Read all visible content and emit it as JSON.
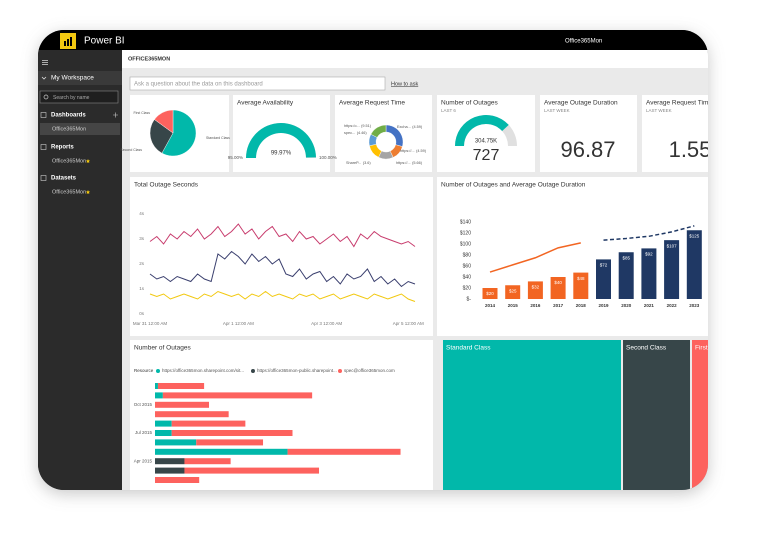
{
  "app": {
    "name": "Power BI",
    "user": "Office365Mon"
  },
  "sidebar": {
    "workspace": "My Workspace",
    "search_placeholder": "Search by name",
    "sections": [
      {
        "title": "Dashboards",
        "items": [
          "Office365Mon"
        ]
      },
      {
        "title": "Reports",
        "items": [
          "Office365Mon"
        ]
      },
      {
        "title": "Datasets",
        "items": [
          "Office365Mon"
        ]
      }
    ]
  },
  "dashboard": {
    "title": "OFFICE365MON",
    "qa_placeholder": "Ask a question about the data on this dashboard",
    "qa_help": "How to ask"
  },
  "cards": [
    {
      "title": "Average Outage Duration",
      "subtitle": "LAST WEEK",
      "value": 96.87
    },
    {
      "title": "Average Request Time",
      "subtitle": "LAST WEEK",
      "value": 1.55
    }
  ],
  "chart_data": [
    {
      "type": "pie",
      "categories": [
        "Standard Class",
        "Second Class",
        "First Class"
      ],
      "values": [
        58,
        27,
        15
      ],
      "colors": [
        "#01b8aa",
        "#374649",
        "#fd625e"
      ]
    },
    {
      "type": "gauge",
      "title": "Average Availability",
      "values": [
        99.97
      ],
      "value_labels": [
        "99.97%"
      ],
      "ylim": [
        95,
        100
      ],
      "yticks": [
        {
          "value": 95,
          "label": "95.00%"
        },
        {
          "value": 100,
          "label": "100.00%"
        }
      ],
      "color": "#01b8aa"
    },
    {
      "type": "donut",
      "title": "Average Request Time",
      "categories": [
        "https:/o...",
        "spec...",
        "Excha...",
        "https://...",
        "ShareP...",
        "https://..."
      ],
      "values": [
        9.51,
        4.46,
        4.59,
        4.59,
        3.6,
        5.66
      ],
      "value_labels": [
        "(9.51)",
        "(4.46)",
        "(4.59)",
        "(4.59)",
        "(3.6)",
        "(5.66)"
      ],
      "colors": [
        "#4472c4",
        "#ed7d31",
        "#a5a5a5",
        "#ffc000",
        "#5b9bd5",
        "#70ad47"
      ]
    },
    {
      "type": "gauge",
      "title": "Number of Outages",
      "subtitle": "LAST 6",
      "values": [
        304750
      ],
      "value_labels": [
        "304.75K"
      ],
      "ylim": [
        0,
        400000
      ],
      "color": "#01b8aa",
      "total": 727
    },
    {
      "type": "line",
      "title": "Total Outage Seconds",
      "categories": [
        "Mar 31 12:00 AM",
        null,
        null,
        null,
        null,
        null,
        null,
        null,
        null,
        null,
        null,
        null,
        null,
        "Apr 1 12:00 AM",
        null,
        null,
        null,
        null,
        null,
        null,
        null,
        null,
        null,
        null,
        null,
        null,
        "Apr 3 12:00 AM",
        null,
        null,
        null,
        null,
        null,
        null,
        null,
        null,
        null,
        null,
        null,
        "Apr 5 12:00 AM",
        null
      ],
      "ylim": [
        0,
        4
      ],
      "yticks": [
        {
          "value": 0,
          "label": "0s"
        },
        {
          "value": 1,
          "label": "1s"
        },
        {
          "value": 2,
          "label": "2s"
        },
        {
          "value": 3,
          "label": "3s"
        },
        {
          "value": 4,
          "label": "4s"
        }
      ],
      "series": [
        {
          "color": "#c83d6e",
          "values": [
            2.9,
            3.1,
            2.8,
            3.2,
            3.0,
            3.3,
            3.1,
            3.4,
            3.0,
            3.2,
            3.5,
            3.1,
            3.3,
            3.6,
            3.2,
            3.4,
            3.0,
            3.3,
            3.5,
            3.1,
            3.2,
            2.9,
            3.3,
            3.0,
            3.1,
            2.8,
            3.0,
            3.2,
            2.9,
            3.1,
            2.7,
            3.2,
            3.0,
            3.3,
            3.1,
            3.0,
            2.9,
            2.8,
            2.9,
            2.7
          ]
        },
        {
          "color": "#3a3f6e",
          "values": [
            1.6,
            1.4,
            1.5,
            1.3,
            1.5,
            1.4,
            1.3,
            1.6,
            1.4,
            1.3,
            2.4,
            2.2,
            2.5,
            2.3,
            2.0,
            2.4,
            2.1,
            2.3,
            2.0,
            2.2,
            1.6,
            1.5,
            1.8,
            1.4,
            1.6,
            1.7,
            1.3,
            1.5,
            1.2,
            1.6,
            1.4,
            1.5,
            1.8,
            1.3,
            1.5,
            1.2,
            1.4,
            1.1,
            1.3,
            1.2
          ]
        },
        {
          "color": "#f2c80f",
          "values": [
            0.8,
            0.7,
            0.8,
            0.6,
            0.7,
            0.8,
            0.7,
            0.6,
            0.8,
            0.7,
            0.9,
            0.8,
            0.7,
            0.8,
            0.6,
            0.8,
            0.7,
            0.9,
            0.7,
            0.8,
            0.7,
            0.6,
            0.8,
            0.7,
            0.8,
            0.6,
            0.7,
            0.8,
            0.6,
            0.7,
            0.8,
            0.7,
            0.6,
            0.8,
            0.7,
            0.6,
            0.7,
            0.8,
            0.6,
            0.5
          ]
        }
      ]
    },
    {
      "type": "combo",
      "title": "Number of Outages and Average Outage Duration",
      "categories": [
        "2014",
        "2015",
        "2016",
        "2017",
        "2018",
        "2019",
        "2020",
        "2021",
        "2022",
        "2023"
      ],
      "ylim": [
        0,
        140
      ],
      "yticks": [
        {
          "value": 0,
          "label": "$-"
        },
        {
          "value": 20,
          "label": "$20"
        },
        {
          "value": 40,
          "label": "$40"
        },
        {
          "value": 60,
          "label": "$60"
        },
        {
          "value": 80,
          "label": "$80"
        },
        {
          "value": 100,
          "label": "$100"
        },
        {
          "value": 120,
          "label": "$120"
        },
        {
          "value": 140,
          "label": "$140"
        }
      ],
      "series": [
        {
          "type": "bar",
          "values": [
            20,
            25,
            32,
            40,
            48,
            72,
            85,
            92,
            107,
            125
          ],
          "value_labels": [
            "$20",
            "$25",
            "$32",
            "$40",
            "$48",
            "$72",
            "$85",
            "$92",
            "$107",
            "$125"
          ],
          "colors": [
            "#f26522",
            "#f26522",
            "#f26522",
            "#f26522",
            "#f26522",
            "#1f3864",
            "#1f3864",
            "#1f3864",
            "#1f3864",
            "#1f3864"
          ]
        },
        {
          "type": "line",
          "color": "#f26522",
          "values": [
            49,
            62,
            75,
            93,
            102,
            null,
            null,
            null,
            null,
            null
          ]
        },
        {
          "type": "line",
          "color": "#1f3864",
          "dashed": true,
          "values": [
            null,
            null,
            null,
            null,
            null,
            107,
            110,
            114,
            122,
            133
          ]
        }
      ]
    },
    {
      "type": "hbar",
      "title": "Number of Outages",
      "legend_title": "Resource",
      "categories": [
        null,
        null,
        "Oct 2015",
        null,
        null,
        "Jul 2015",
        null,
        null,
        "Apr 2015",
        null,
        null
      ],
      "xlim": [
        0,
        280
      ],
      "series": [
        {
          "name": "https://office365mon.sharepoint.com/sit...",
          "color": "#01b8aa",
          "values": [
            3,
            8,
            0,
            0,
            17,
            17,
            42,
            135,
            0,
            0,
            0
          ]
        },
        {
          "name": "https://office365mon-public.sharepoint...",
          "color": "#374649",
          "values": [
            0,
            0,
            0,
            0,
            0,
            0,
            0,
            0,
            30,
            30,
            0
          ]
        },
        {
          "name": "spec@office365mon.com",
          "color": "#fd625e",
          "values": [
            47,
            152,
            55,
            75,
            75,
            123,
            68,
            115,
            47,
            137,
            45
          ]
        }
      ]
    },
    {
      "type": "treemap",
      "categories": [
        "Standard Class",
        "Second Class",
        "First Class"
      ],
      "values": [
        60,
        23,
        17
      ],
      "colors": [
        "#01b8aa",
        "#374649",
        "#fd625e"
      ]
    }
  ]
}
